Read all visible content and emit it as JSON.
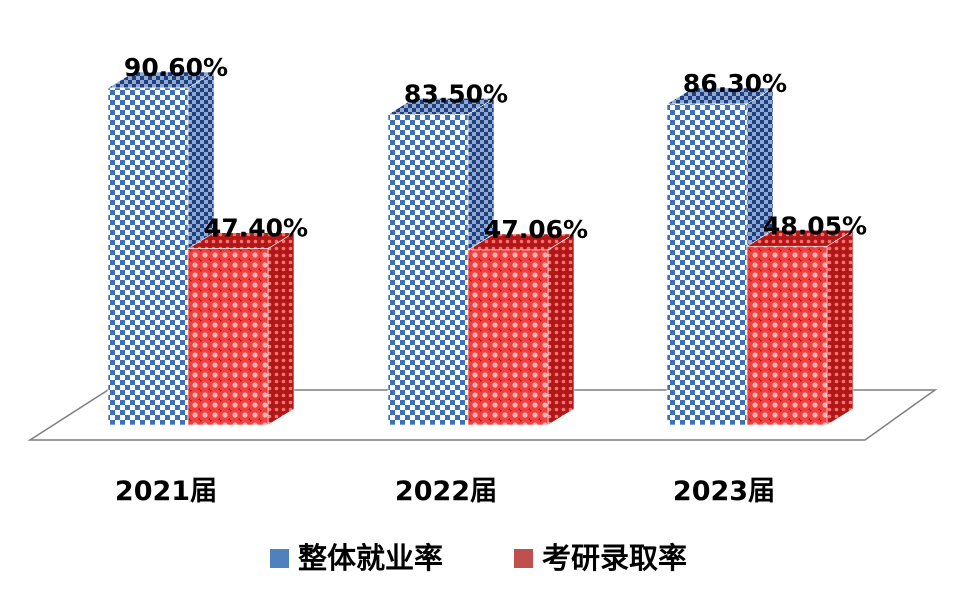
{
  "chart_data": {
    "type": "bar",
    "categories": [
      "2021届",
      "2022届",
      "2023届"
    ],
    "series": [
      {
        "name": "整体就业率",
        "values": [
          90.6,
          83.5,
          86.3
        ],
        "labels": [
          "90.60%",
          "83.50%",
          "86.30%"
        ],
        "color": "#4f81bd"
      },
      {
        "name": "考研录取率",
        "values": [
          47.4,
          47.06,
          48.05
        ],
        "labels": [
          "47.40%",
          "47.06%",
          "48.05%"
        ],
        "color": "#c0504d"
      }
    ],
    "ylim": [
      0,
      100
    ],
    "grid": false,
    "legend": "bottom"
  }
}
